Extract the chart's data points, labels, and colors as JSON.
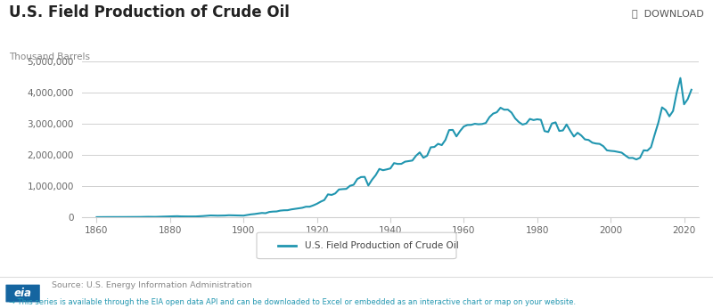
{
  "title": "U.S. Field Production of Crude Oil",
  "ylabel": "Thousand Barrels",
  "legend_label": "U.S. Field Production of Crude Oil",
  "source_text": "Source: U.S. Energy Information Administration",
  "footer_text": "This series is available through the EIA open data API and can be downloaded to Excel or embedded as an interactive chart or map on your website.",
  "download_text": "⤓  DOWNLOAD",
  "line_color": "#2196b0",
  "background_color": "#ffffff",
  "grid_color": "#d0d0d0",
  "ylim": [
    0,
    5000000
  ],
  "yticks": [
    0,
    1000000,
    2000000,
    3000000,
    4000000,
    5000000
  ],
  "xticks": [
    1860,
    1880,
    1900,
    1920,
    1940,
    1960,
    1980,
    2000,
    2020
  ],
  "xlim": [
    1856,
    2024
  ],
  "data": {
    "years": [
      1860,
      1861,
      1862,
      1863,
      1864,
      1865,
      1866,
      1867,
      1868,
      1869,
      1870,
      1871,
      1872,
      1873,
      1874,
      1875,
      1876,
      1877,
      1878,
      1879,
      1880,
      1881,
      1882,
      1883,
      1884,
      1885,
      1886,
      1887,
      1888,
      1889,
      1890,
      1891,
      1892,
      1893,
      1894,
      1895,
      1896,
      1897,
      1898,
      1899,
      1900,
      1901,
      1902,
      1903,
      1904,
      1905,
      1906,
      1907,
      1908,
      1909,
      1910,
      1911,
      1912,
      1913,
      1914,
      1915,
      1916,
      1917,
      1918,
      1919,
      1920,
      1921,
      1922,
      1923,
      1924,
      1925,
      1926,
      1927,
      1928,
      1929,
      1930,
      1931,
      1932,
      1933,
      1934,
      1935,
      1936,
      1937,
      1938,
      1939,
      1940,
      1941,
      1942,
      1943,
      1944,
      1945,
      1946,
      1947,
      1948,
      1949,
      1950,
      1951,
      1952,
      1953,
      1954,
      1955,
      1956,
      1957,
      1958,
      1959,
      1960,
      1961,
      1962,
      1963,
      1964,
      1965,
      1966,
      1967,
      1968,
      1969,
      1970,
      1971,
      1972,
      1973,
      1974,
      1975,
      1976,
      1977,
      1978,
      1979,
      1980,
      1981,
      1982,
      1983,
      1984,
      1985,
      1986,
      1987,
      1988,
      1989,
      1990,
      1991,
      1992,
      1993,
      1994,
      1995,
      1996,
      1997,
      1998,
      1999,
      2000,
      2001,
      2002,
      2003,
      2004,
      2005,
      2006,
      2007,
      2008,
      2009,
      2010,
      2011,
      2012,
      2013,
      2014,
      2015,
      2016,
      2017,
      2018,
      2019,
      2020,
      2021,
      2022
    ],
    "values": [
      500,
      2113,
      3057,
      2611,
      2116,
      3237,
      3597,
      3347,
      3646,
      4215,
      5260,
      5205,
      6294,
      9893,
      10927,
      8788,
      9025,
      13350,
      15397,
      19914,
      26286,
      27661,
      30350,
      24218,
      24218,
      21859,
      21006,
      22725,
      27612,
      35163,
      45824,
      54293,
      50515,
      48431,
      49344,
      52892,
      60960,
      57347,
      55364,
      52646,
      49349,
      69389,
      88767,
      100461,
      117080,
      134717,
      126493,
      166095,
      178557,
      183171,
      209557,
      220449,
      222932,
      248446,
      265763,
      281431,
      300767,
      335316,
      335791,
      377747,
      429861,
      496134,
      549997,
      732407,
      713940,
      763223,
      889024,
      901129,
      908616,
      1007323,
      1041236,
      1226022,
      1289244,
      1294833,
      1017256,
      1202078,
      1348974,
      1549982,
      1508678,
      1534561,
      1565545,
      1736978,
      1710556,
      1714007,
      1783071,
      1802860,
      1820044,
      1975565,
      2081427,
      1908517,
      1973574,
      2245441,
      2256808,
      2357082,
      2314796,
      2483799,
      2798747,
      2804640,
      2596061,
      2769866,
      2914034,
      2962889,
      2966022,
      3000766,
      2985666,
      2993517,
      3027763,
      3215742,
      3329044,
      3371889,
      3517450,
      3453914,
      3457012,
      3360750,
      3174152,
      3056718,
      2976180,
      3009178,
      3157184,
      3120818,
      3146365,
      3128614,
      2766565,
      2737468,
      3010626,
      3047342,
      2771321,
      2786822,
      2979215,
      2774179,
      2590765,
      2713001,
      2624649,
      2499132,
      2480580,
      2394348,
      2366397,
      2354929,
      2281844,
      2146999,
      2130707,
      2119780,
      2097192,
      2073438,
      1983301,
      1901909,
      1904631,
      1854929,
      1908401,
      2148698,
      2137438,
      2249060,
      2654222,
      3040318,
      3528879,
      3440222,
      3240978,
      3411929,
      4000297,
      4472000,
      3627000,
      3793000,
      4095000
    ]
  }
}
